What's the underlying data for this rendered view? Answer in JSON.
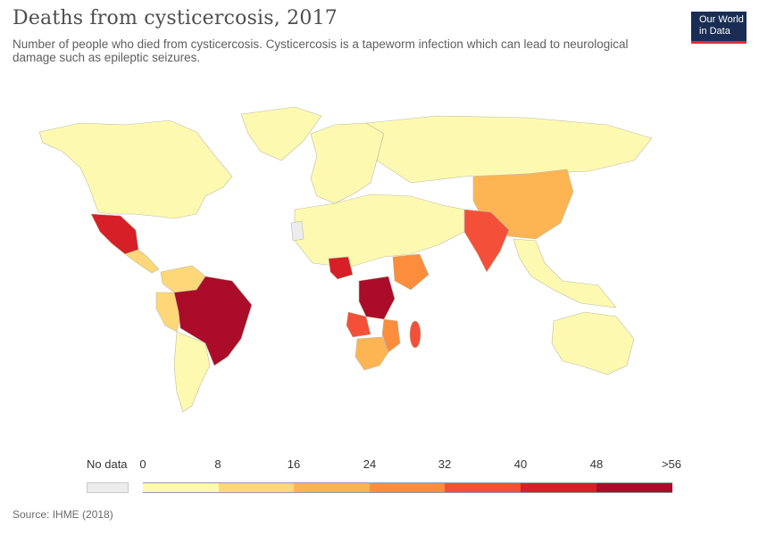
{
  "header": {
    "title": "Deaths from cysticercosis, 2017",
    "subtitle": "Number of people who died from cysticercosis. Cysticercosis is a tapeworm infection which can lead to neurological damage such as epileptic seizures."
  },
  "logo": {
    "line1": "Our World",
    "line2": "in Data"
  },
  "legend": {
    "no_data_label": "No data",
    "no_data_color": "#ececec",
    "bins": [
      {
        "label": "0",
        "color": "#fef9b1"
      },
      {
        "label": "8",
        "color": "#fdd778"
      },
      {
        "label": "16",
        "color": "#fcb552"
      },
      {
        "label": "24",
        "color": "#fb8d3d"
      },
      {
        "label": "32",
        "color": "#f44f39"
      },
      {
        "label": "40",
        "color": "#d61f26"
      },
      {
        "label": "48",
        "color": "#aa0c2a"
      }
    ],
    "max_label": ">56"
  },
  "source": "Source: IHME (2018)",
  "regions": [
    {
      "id": "north-america",
      "color": "#fef9b1"
    },
    {
      "id": "greenland",
      "color": "#fef9b1"
    },
    {
      "id": "mexico",
      "color": "#d61f26"
    },
    {
      "id": "central-america",
      "color": "#fdd778"
    },
    {
      "id": "brazil",
      "color": "#aa0c2a"
    },
    {
      "id": "peru",
      "color": "#fdd778"
    },
    {
      "id": "venezuela",
      "color": "#fdd778"
    },
    {
      "id": "south-america-rest",
      "color": "#fef9b1"
    },
    {
      "id": "europe",
      "color": "#fef9b1"
    },
    {
      "id": "russia",
      "color": "#fef9b1"
    },
    {
      "id": "china",
      "color": "#fcb552"
    },
    {
      "id": "india",
      "color": "#f44f39"
    },
    {
      "id": "southeast-asia",
      "color": "#fef9b1"
    },
    {
      "id": "africa-north",
      "color": "#fef9b1"
    },
    {
      "id": "nigeria",
      "color": "#d61f26"
    },
    {
      "id": "drc",
      "color": "#aa0c2a"
    },
    {
      "id": "angola",
      "color": "#f44f39"
    },
    {
      "id": "ethiopia",
      "color": "#fb8d3d"
    },
    {
      "id": "mozambique",
      "color": "#fb8d3d"
    },
    {
      "id": "south-africa",
      "color": "#fcb552"
    },
    {
      "id": "madagascar",
      "color": "#f44f39"
    },
    {
      "id": "australia",
      "color": "#fef9b1"
    },
    {
      "id": "western-sahara",
      "color": "#ececec"
    }
  ]
}
